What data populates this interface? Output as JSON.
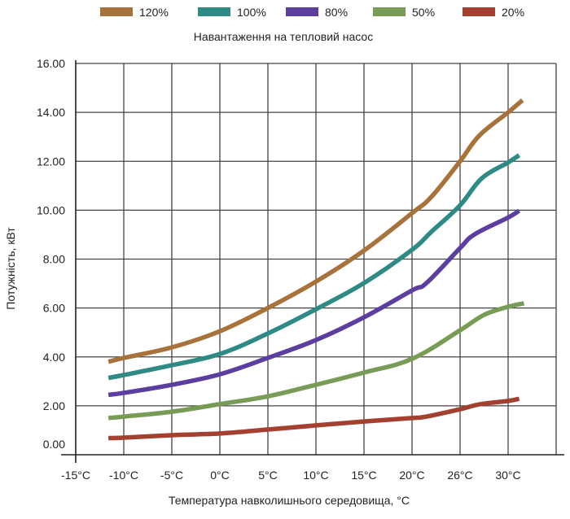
{
  "chart_data": {
    "type": "line",
    "title": "Навантаження на тепловий насос",
    "xlabel": "Температура навколишнього середовища, °C",
    "ylabel": "Потужність, кВт",
    "x_tick_labels": [
      "-15°C",
      "-10°C",
      "-5°C",
      "0°C",
      "5°C",
      "10°C",
      "15°C",
      "20°C",
      "26°C",
      "30°C"
    ],
    "x_scale_note": "x values are positions along the categorical temperature axis (0 = -15°C, 1 = -10°C, ... 7 = 20°C, 8 = 26°C, 9 = 30°C)",
    "x_range": [
      0,
      10
    ],
    "y_tick_labels": [
      "0.00",
      "2.00",
      "4.00",
      "6.00",
      "8.00",
      "10.00",
      "12.00",
      "14.00",
      "16.00"
    ],
    "y_ticks": [
      0,
      2,
      4,
      6,
      8,
      10,
      12,
      14,
      16
    ],
    "ylim": [
      0,
      16
    ],
    "grid": true,
    "legend_position": "top",
    "series": [
      {
        "name": "120%",
        "color": "#a8733b",
        "x": [
          0.68,
          1,
          2,
          3,
          4,
          5,
          6,
          7,
          7.4,
          8,
          8.4,
          9,
          9.3
        ],
        "y": [
          3.8,
          3.96,
          4.39,
          5.05,
          6.0,
          7.08,
          8.35,
          9.88,
          10.54,
          12.0,
          13.05,
          14.0,
          14.5
        ]
      },
      {
        "name": "100%",
        "color": "#2e8a85",
        "x": [
          0.68,
          1,
          2,
          3,
          4,
          5,
          6,
          7,
          7.4,
          8,
          8.45,
          9,
          9.23
        ],
        "y": [
          3.14,
          3.26,
          3.66,
          4.12,
          4.96,
          5.95,
          7.02,
          8.38,
          9.11,
          10.2,
          11.3,
          11.95,
          12.25
        ]
      },
      {
        "name": "80%",
        "color": "#5b3ea0",
        "x": [
          0.68,
          1,
          2,
          3,
          4,
          5,
          6,
          7,
          7.3,
          8,
          8.3,
          9,
          9.23
        ],
        "y": [
          2.45,
          2.53,
          2.86,
          3.29,
          3.96,
          4.69,
          5.62,
          6.72,
          7.02,
          8.45,
          9.01,
          9.7,
          9.98
        ]
      },
      {
        "name": "50%",
        "color": "#789c55",
        "x": [
          0.68,
          1,
          2,
          3,
          4,
          5,
          6,
          7,
          8,
          8.5,
          9,
          9.33
        ],
        "y": [
          1.5,
          1.56,
          1.76,
          2.07,
          2.39,
          2.86,
          3.36,
          3.92,
          5.09,
          5.72,
          6.05,
          6.19
        ]
      },
      {
        "name": "20%",
        "color": "#a3402f",
        "x": [
          0.68,
          1,
          2,
          3,
          4,
          5,
          6,
          7,
          7.3,
          8,
          8.4,
          9,
          9.23
        ],
        "y": [
          0.68,
          0.7,
          0.8,
          0.87,
          1.03,
          1.2,
          1.36,
          1.5,
          1.56,
          1.86,
          2.06,
          2.2,
          2.29
        ]
      }
    ]
  }
}
